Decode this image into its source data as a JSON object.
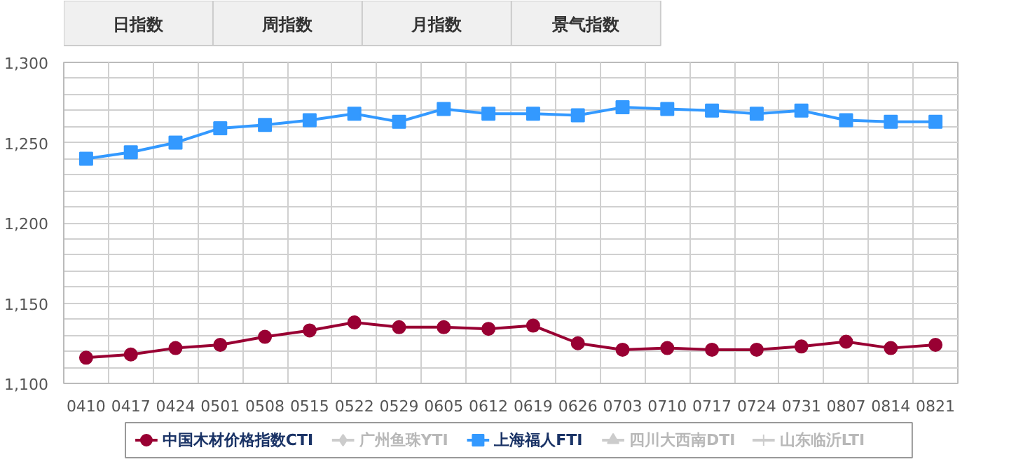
{
  "chart_data": {
    "type": "line",
    "annotations": [
      "日指数",
      "周指数",
      "月指数",
      "景气指数"
    ],
    "categories": [
      "0410",
      "0417",
      "0424",
      "0501",
      "0508",
      "0515",
      "0522",
      "0529",
      "0605",
      "0612",
      "0619",
      "0626",
      "0703",
      "0710",
      "0717",
      "0724",
      "0731",
      "0807",
      "0814",
      "0821"
    ],
    "series": [
      {
        "name": "中国木材价格指数CTI",
        "color": "#990033",
        "marker": "circle",
        "values": [
          1116,
          1118,
          1122,
          1124,
          1129,
          1133,
          1138,
          1135,
          1135,
          1134,
          1136,
          1125,
          1121,
          1122,
          1121,
          1121,
          1123,
          1126,
          1122,
          1124
        ]
      },
      {
        "name": "广州鱼珠YTI",
        "color": "#cccccc",
        "marker": "diamond",
        "values": [
          null,
          null,
          null,
          null,
          null,
          null,
          null,
          null,
          null,
          null,
          null,
          null,
          null,
          null,
          null,
          null,
          null,
          null,
          null,
          null
        ]
      },
      {
        "name": "上海福人FTI",
        "color": "#3399ff",
        "marker": "square",
        "values": [
          1240,
          1244,
          1250,
          1259,
          1261,
          1264,
          1268,
          1263,
          1271,
          1268,
          1268,
          1267,
          1272,
          1271,
          1270,
          1268,
          1270,
          1264,
          1263,
          1263
        ]
      },
      {
        "name": "四川大西南DTI",
        "color": "#cccccc",
        "marker": "triangle",
        "values": [
          null,
          null,
          null,
          null,
          null,
          null,
          null,
          null,
          null,
          null,
          null,
          null,
          null,
          null,
          null,
          null,
          null,
          null,
          null,
          null
        ]
      },
      {
        "name": "山东临沂LTI",
        "color": "#cccccc",
        "marker": "cross",
        "values": [
          null,
          null,
          null,
          null,
          null,
          null,
          null,
          null,
          null,
          null,
          null,
          null,
          null,
          null,
          null,
          null,
          null,
          null,
          null,
          null
        ]
      }
    ],
    "ylim": [
      1100,
      1300
    ],
    "yticks": [
      {
        "value": 1100,
        "label": "1,100"
      },
      {
        "value": 1110,
        "label": null
      },
      {
        "value": 1120,
        "label": null
      },
      {
        "value": 1130,
        "label": null
      },
      {
        "value": 1140,
        "label": null
      },
      {
        "value": 1150,
        "label": "1,150"
      },
      {
        "value": 1160,
        "label": null
      },
      {
        "value": 1170,
        "label": null
      },
      {
        "value": 1180,
        "label": null
      },
      {
        "value": 1190,
        "label": null
      },
      {
        "value": 1200,
        "label": "1,200"
      },
      {
        "value": 1210,
        "label": null
      },
      {
        "value": 1220,
        "label": null
      },
      {
        "value": 1230,
        "label": null
      },
      {
        "value": 1240,
        "label": null
      },
      {
        "value": 1250,
        "label": "1,250"
      },
      {
        "value": 1260,
        "label": null
      },
      {
        "value": 1270,
        "label": null
      },
      {
        "value": 1280,
        "label": null
      },
      {
        "value": 1290,
        "label": null
      },
      {
        "value": 1300,
        "label": "1,300"
      }
    ],
    "grid": true,
    "legend": "bottom",
    "line_style": "solid"
  }
}
